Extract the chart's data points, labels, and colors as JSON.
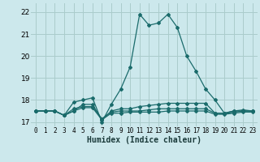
{
  "xlabel": "Humidex (Indice chaleur)",
  "background_color": "#cce8ec",
  "grid_color": "#aacccc",
  "line_color": "#1a6b6b",
  "xlim": [
    -0.5,
    23.5
  ],
  "ylim": [
    16.8,
    22.4
  ],
  "yticks": [
    17,
    18,
    19,
    20,
    21,
    22
  ],
  "xtick_labels": [
    "0",
    "1",
    "2",
    "3",
    "4",
    "5",
    "6",
    "7",
    "8",
    "9",
    "10",
    "11",
    "12",
    "13",
    "14",
    "15",
    "16",
    "17",
    "18",
    "19",
    "20",
    "21",
    "22",
    "23"
  ],
  "series": [
    [
      17.5,
      17.5,
      17.5,
      17.3,
      17.9,
      18.0,
      18.1,
      17.0,
      17.8,
      18.5,
      19.5,
      21.9,
      21.4,
      21.5,
      21.9,
      21.3,
      20.0,
      19.3,
      18.5,
      18.0,
      17.4,
      17.5,
      17.5,
      17.5
    ],
    [
      17.5,
      17.5,
      17.5,
      17.3,
      17.5,
      17.8,
      17.8,
      17.1,
      17.5,
      17.6,
      17.6,
      17.7,
      17.75,
      17.8,
      17.85,
      17.85,
      17.85,
      17.85,
      17.85,
      17.4,
      17.4,
      17.5,
      17.55,
      17.5
    ],
    [
      17.5,
      17.5,
      17.5,
      17.3,
      17.5,
      17.65,
      17.65,
      17.1,
      17.4,
      17.4,
      17.45,
      17.45,
      17.45,
      17.45,
      17.5,
      17.5,
      17.5,
      17.5,
      17.5,
      17.35,
      17.35,
      17.4,
      17.45,
      17.45
    ],
    [
      17.5,
      17.5,
      17.5,
      17.3,
      17.6,
      17.7,
      17.7,
      17.15,
      17.45,
      17.5,
      17.5,
      17.5,
      17.55,
      17.6,
      17.6,
      17.6,
      17.6,
      17.6,
      17.6,
      17.4,
      17.38,
      17.45,
      17.5,
      17.5
    ]
  ]
}
